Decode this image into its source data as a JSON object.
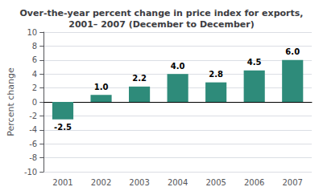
{
  "chart_data": {
    "type": "bar",
    "title": "Over-the-year percent change in price index for exports,\n2001– 2007 (December to December)",
    "ylabel": "Percent change",
    "categories": [
      "2001",
      "2002",
      "2003",
      "2004",
      "2005",
      "2006",
      "2007"
    ],
    "values": [
      -2.5,
      1.0,
      2.2,
      4.0,
      2.8,
      4.5,
      6.0
    ],
    "value_labels": [
      "-2.5",
      "1.0",
      "2.2",
      "4.0",
      "2.8",
      "4.5",
      "6.0"
    ],
    "data_labels": true,
    "color": "#2e8b7a",
    "ylim": [
      -10,
      10
    ],
    "yticks": [
      -10,
      -8,
      -6,
      -4,
      -2,
      0,
      2,
      4,
      6,
      8,
      10
    ],
    "grid": true
  }
}
